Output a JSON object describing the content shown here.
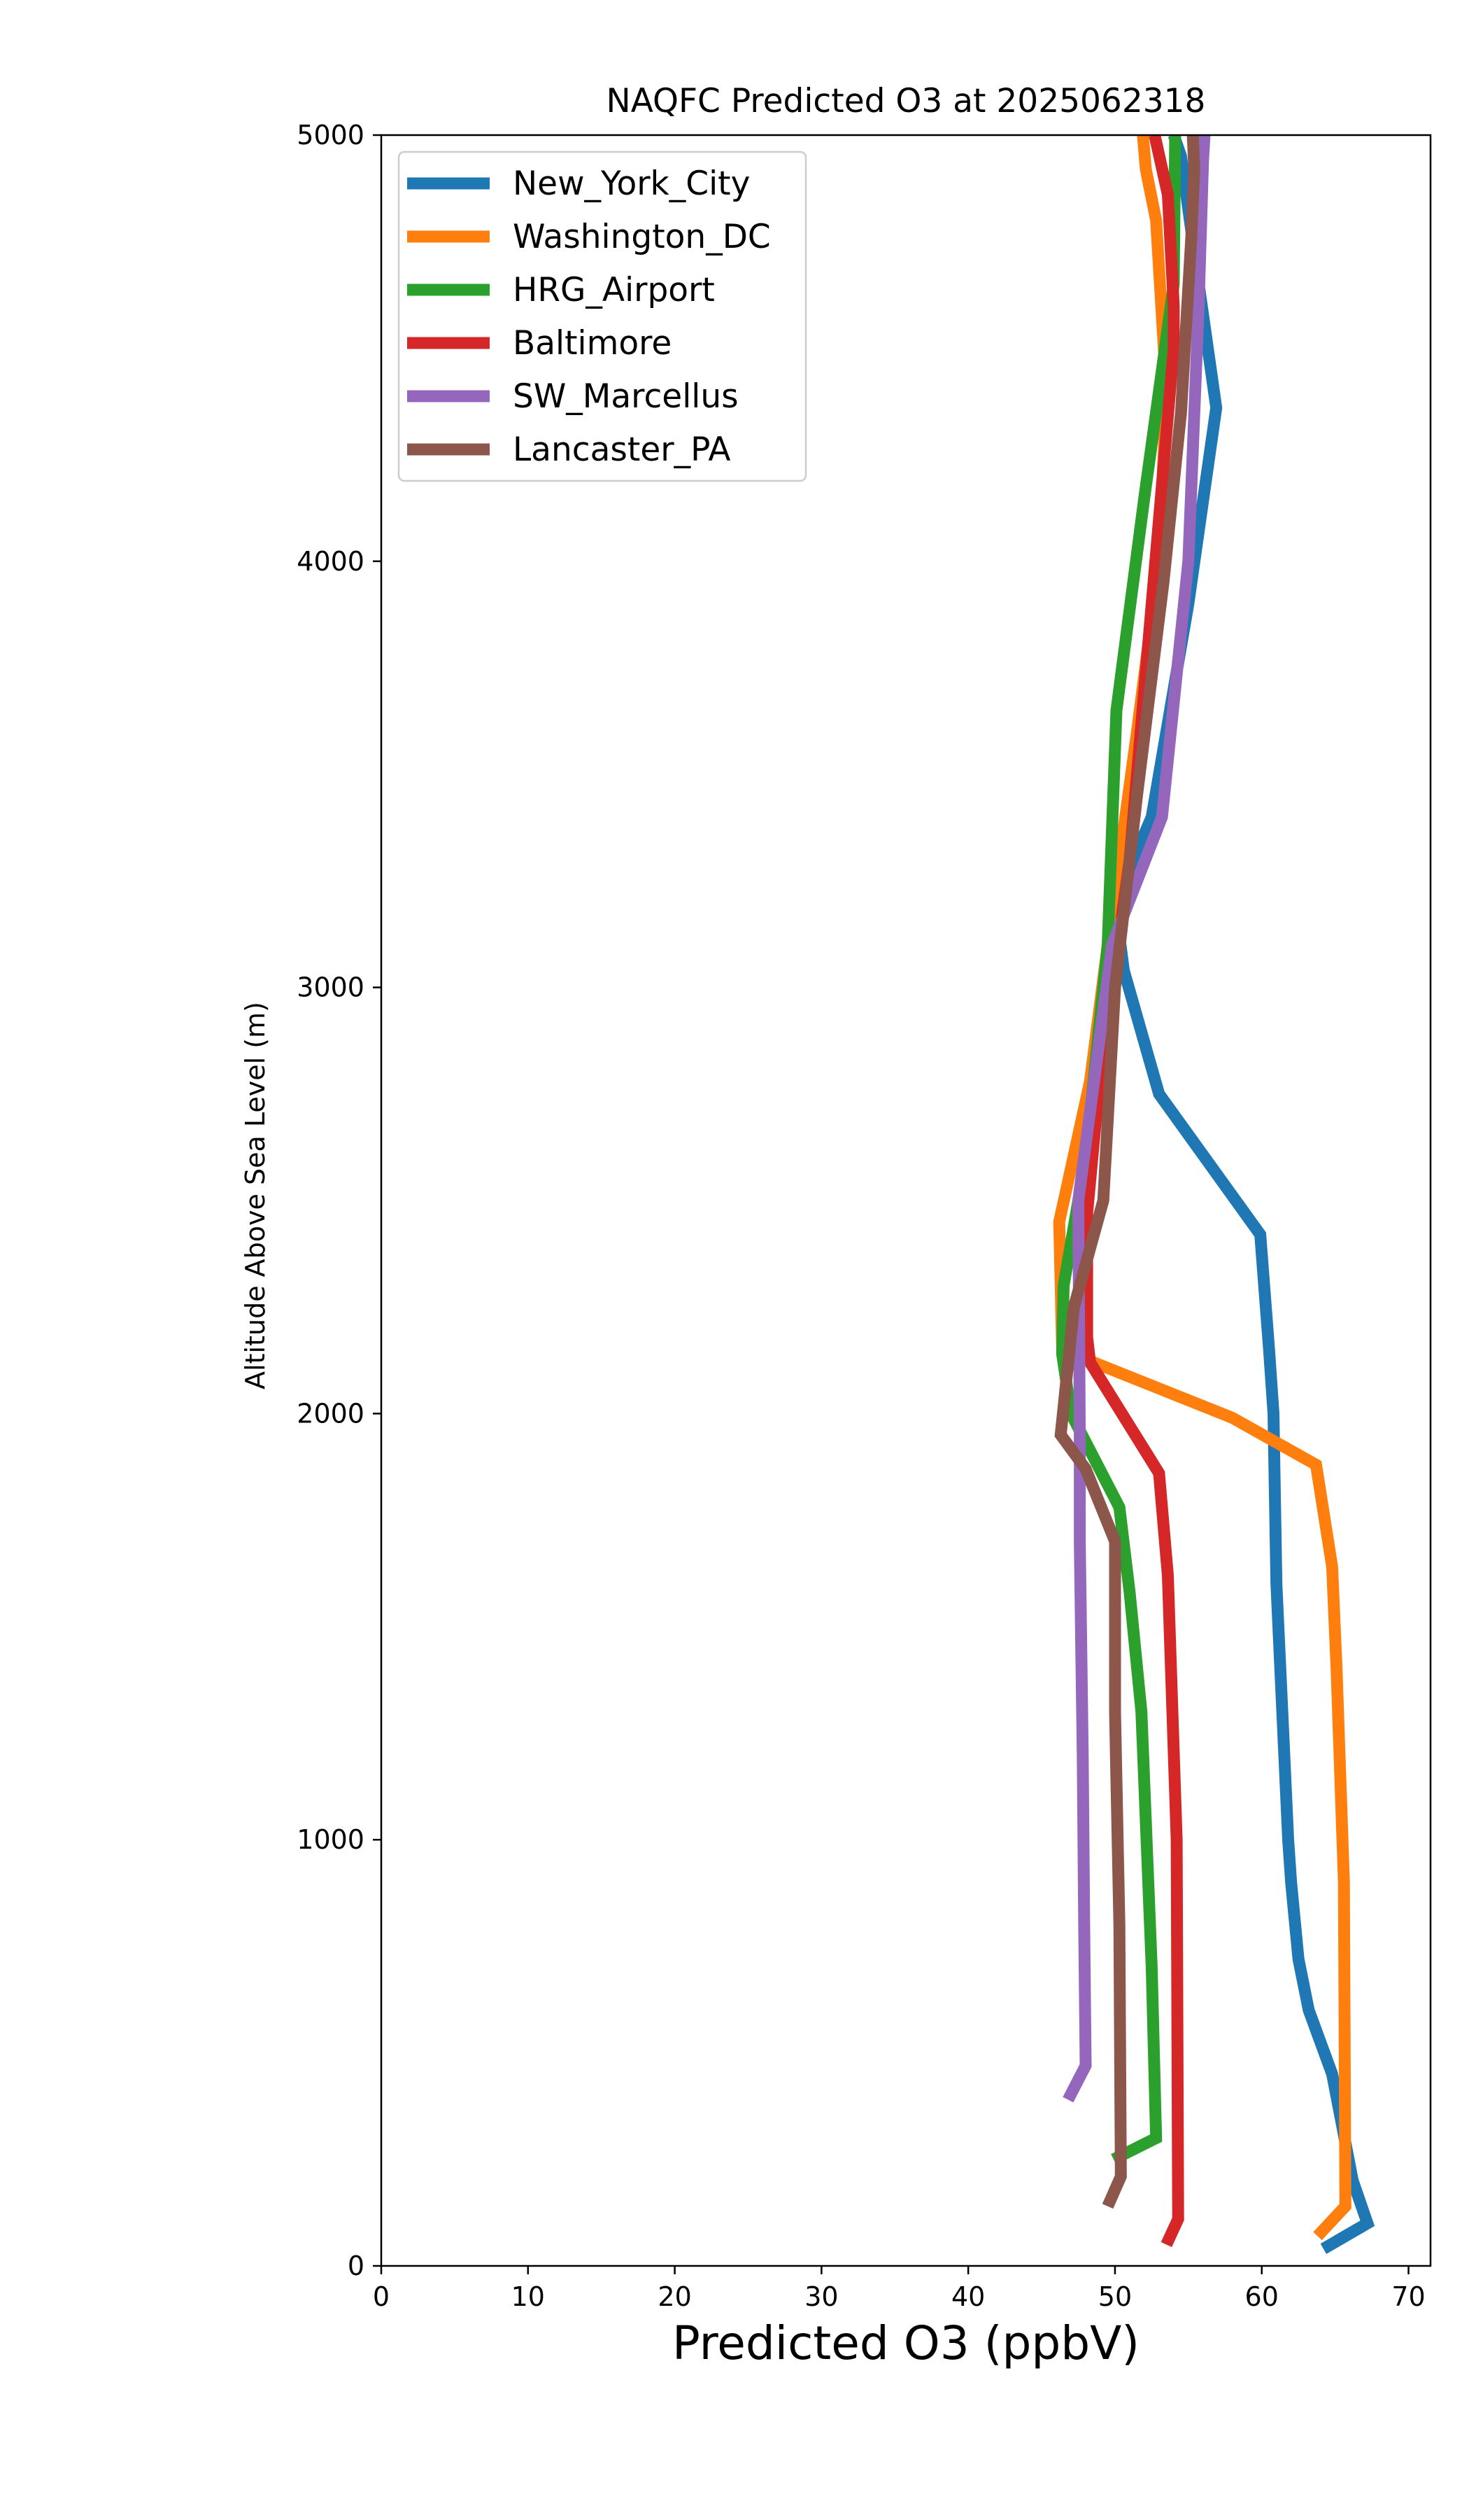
{
  "chart_data": {
    "type": "line",
    "title": "NAQFC Predicted O3 at 2025062318",
    "xlabel": "Predicted O3 (ppbV)",
    "ylabel": "Altitude Above Sea Level (m)",
    "xlim": [
      0,
      71.5
    ],
    "ylim": [
      0,
      5000
    ],
    "xticks": [
      0,
      10,
      20,
      30,
      40,
      50,
      60,
      70
    ],
    "yticks": [
      0,
      1000,
      2000,
      3000,
      4000,
      5000
    ],
    "xtick_labels": [
      "0",
      "10",
      "20",
      "30",
      "40",
      "50",
      "60",
      "70"
    ],
    "ytick_labels": [
      "0",
      "1000",
      "2000",
      "3000",
      "4000",
      "5000"
    ],
    "grid": false,
    "legend_position": "top-left",
    "series": [
      {
        "name": "New_York_City",
        "color": "#1f77b4",
        "points": [
          [
            64.2,
            40
          ],
          [
            67.2,
            100
          ],
          [
            66.2,
            200
          ],
          [
            64.8,
            450
          ],
          [
            63.2,
            600
          ],
          [
            62.5,
            720
          ],
          [
            62.0,
            900
          ],
          [
            61.8,
            1000
          ],
          [
            61.0,
            1600
          ],
          [
            60.8,
            2000
          ],
          [
            60.5,
            2150
          ],
          [
            59.9,
            2420
          ],
          [
            53.0,
            2750
          ],
          [
            50.6,
            3040
          ],
          [
            50.0,
            3200
          ],
          [
            52.5,
            3400
          ],
          [
            55.0,
            3900
          ],
          [
            56.9,
            4360
          ],
          [
            55.5,
            4700
          ],
          [
            54.5,
            4950
          ],
          [
            54.0,
            5000
          ]
        ]
      },
      {
        "name": "Washington_DC",
        "color": "#ff7f0e",
        "points": [
          [
            63.8,
            70
          ],
          [
            65.7,
            140
          ],
          [
            65.6,
            900
          ],
          [
            65.1,
            1400
          ],
          [
            64.8,
            1640
          ],
          [
            63.7,
            1880
          ],
          [
            58.0,
            1990
          ],
          [
            50.0,
            2100
          ],
          [
            46.4,
            2150
          ],
          [
            46.2,
            2450
          ],
          [
            48.3,
            2780
          ],
          [
            49.5,
            3100
          ],
          [
            51.5,
            3600
          ],
          [
            53.0,
            4000
          ],
          [
            53.5,
            4400
          ],
          [
            52.8,
            4800
          ],
          [
            52.1,
            4920
          ],
          [
            51.9,
            5000
          ]
        ]
      },
      {
        "name": "HRG_Airport",
        "color": "#2ca02c",
        "points": [
          [
            49.9,
            250
          ],
          [
            52.8,
            300
          ],
          [
            52.5,
            700
          ],
          [
            51.8,
            1300
          ],
          [
            51.0,
            1580
          ],
          [
            50.3,
            1780
          ],
          [
            47.0,
            2000
          ],
          [
            46.4,
            2140
          ],
          [
            46.5,
            2300
          ],
          [
            48.0,
            2600
          ],
          [
            49.5,
            3100
          ],
          [
            50.1,
            3650
          ],
          [
            52.0,
            4150
          ],
          [
            54.0,
            4650
          ],
          [
            54.1,
            5000
          ]
        ]
      },
      {
        "name": "Baltimore",
        "color": "#d62728",
        "points": [
          [
            53.5,
            50
          ],
          [
            54.3,
            110
          ],
          [
            54.2,
            1000
          ],
          [
            53.6,
            1620
          ],
          [
            53.0,
            1860
          ],
          [
            48.3,
            2120
          ],
          [
            48.1,
            2180
          ],
          [
            48.1,
            2470
          ],
          [
            49.0,
            2800
          ],
          [
            51.0,
            3300
          ],
          [
            52.0,
            3700
          ],
          [
            53.5,
            4300
          ],
          [
            54.0,
            4500
          ],
          [
            54.0,
            4600
          ],
          [
            53.6,
            4860
          ],
          [
            52.7,
            5000
          ]
        ]
      },
      {
        "name": "SW_Marcellus",
        "color": "#9467bd",
        "points": [
          [
            46.8,
            390
          ],
          [
            48.0,
            470
          ],
          [
            47.9,
            800
          ],
          [
            47.8,
            1200
          ],
          [
            47.6,
            1700
          ],
          [
            47.6,
            1950
          ],
          [
            47.5,
            2500
          ],
          [
            49.8,
            3100
          ],
          [
            53.2,
            3400
          ],
          [
            55.0,
            4000
          ],
          [
            55.7,
            4600
          ],
          [
            56.0,
            4940
          ],
          [
            56.1,
            5000
          ]
        ]
      },
      {
        "name": "Lancaster_PA",
        "color": "#8c564b",
        "points": [
          [
            49.5,
            140
          ],
          [
            50.4,
            210
          ],
          [
            50.3,
            800
          ],
          [
            50.0,
            1300
          ],
          [
            50.0,
            1700
          ],
          [
            48.0,
            1870
          ],
          [
            46.3,
            1950
          ],
          [
            47.2,
            2250
          ],
          [
            49.2,
            2500
          ],
          [
            50.0,
            3000
          ],
          [
            51.5,
            3450
          ],
          [
            53.3,
            3950
          ],
          [
            54.5,
            4350
          ],
          [
            55.2,
            4760
          ],
          [
            55.4,
            4920
          ],
          [
            55.3,
            5000
          ]
        ]
      }
    ]
  }
}
